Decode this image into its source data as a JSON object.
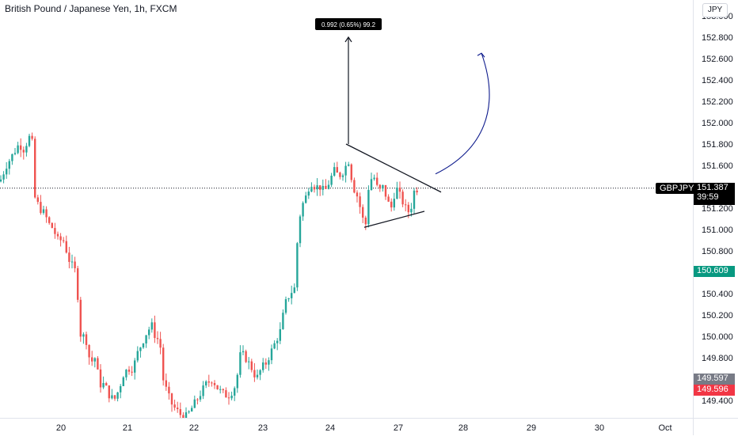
{
  "header": {
    "title": "British Pound / Japanese Yen, 1h, FXCM",
    "currency": "JPY"
  },
  "symbol_label": "GBPJPY",
  "price_tags": {
    "last": {
      "price": "151.387",
      "countdown": "39:59",
      "color": "#000000"
    },
    "level": {
      "price": "150.609",
      "color": "#089981"
    },
    "grey": {
      "price": "149.597",
      "color": "#787b86"
    },
    "red": {
      "price": "149.596",
      "color": "#f23645"
    }
  },
  "measure": {
    "text": "0.992 (0.65%) 99.2"
  },
  "colors": {
    "up": "#26a69a",
    "down": "#ef5350",
    "arrow": "#0d1a8c",
    "line": "#131722"
  },
  "chart_data": {
    "type": "candlestick",
    "title": "British Pound / Japanese Yen, 1h, FXCM",
    "x_tick_labels": [
      "20",
      "21",
      "22",
      "23",
      "24",
      "27",
      "28",
      "29",
      "30",
      "Oct"
    ],
    "y_tick_labels": [
      "149.400",
      "149.600",
      "149.800",
      "150.000",
      "150.200",
      "150.400",
      "150.600",
      "150.800",
      "151.000",
      "151.200",
      "151.400",
      "151.600",
      "151.800",
      "152.000",
      "152.200",
      "152.400",
      "152.600",
      "152.800",
      "153.000"
    ],
    "ylim": [
      149.3,
      153.1
    ],
    "approx_close_path": [
      [
        0,
        151.45
      ],
      [
        8,
        151.6
      ],
      [
        16,
        151.7
      ],
      [
        24,
        151.8
      ],
      [
        30,
        151.75
      ],
      [
        36,
        151.85
      ],
      [
        40,
        151.9
      ],
      [
        44,
        151.3
      ],
      [
        50,
        151.2
      ],
      [
        56,
        151.15
      ],
      [
        62,
        151.05
      ],
      [
        68,
        151.0
      ],
      [
        72,
        150.9
      ],
      [
        80,
        150.9
      ],
      [
        88,
        150.7
      ],
      [
        96,
        150.6
      ],
      [
        102,
        150.0
      ],
      [
        108,
        150.0
      ],
      [
        114,
        149.75
      ],
      [
        120,
        149.8
      ],
      [
        126,
        149.55
      ],
      [
        132,
        149.55
      ],
      [
        138,
        149.45
      ],
      [
        144,
        149.4
      ],
      [
        150,
        149.5
      ],
      [
        156,
        149.65
      ],
      [
        162,
        149.7
      ],
      [
        168,
        149.7
      ],
      [
        174,
        149.85
      ],
      [
        180,
        149.95
      ],
      [
        186,
        150.05
      ],
      [
        192,
        150.1
      ],
      [
        196,
        150.0
      ],
      [
        202,
        149.95
      ],
      [
        206,
        149.6
      ],
      [
        212,
        149.45
      ],
      [
        218,
        149.35
      ],
      [
        224,
        149.3
      ],
      [
        230,
        149.25
      ],
      [
        236,
        149.25
      ],
      [
        244,
        149.35
      ],
      [
        252,
        149.45
      ],
      [
        260,
        149.55
      ],
      [
        268,
        149.6
      ],
      [
        276,
        149.5
      ],
      [
        284,
        149.45
      ],
      [
        290,
        149.45
      ],
      [
        298,
        149.55
      ],
      [
        304,
        149.85
      ],
      [
        310,
        149.8
      ],
      [
        318,
        149.7
      ],
      [
        324,
        149.6
      ],
      [
        330,
        149.7
      ],
      [
        336,
        149.75
      ],
      [
        342,
        149.85
      ],
      [
        348,
        149.95
      ],
      [
        354,
        150.05
      ],
      [
        360,
        150.3
      ],
      [
        366,
        150.4
      ],
      [
        372,
        150.45
      ],
      [
        376,
        150.95
      ],
      [
        380,
        151.2
      ],
      [
        386,
        151.3
      ],
      [
        392,
        151.45
      ],
      [
        398,
        151.4
      ],
      [
        404,
        151.4
      ],
      [
        410,
        151.35
      ],
      [
        416,
        151.45
      ],
      [
        422,
        151.55
      ],
      [
        428,
        151.5
      ],
      [
        434,
        151.55
      ],
      [
        440,
        151.65
      ],
      [
        446,
        151.4
      ],
      [
        452,
        151.3
      ],
      [
        458,
        151.1
      ],
      [
        462,
        151.05
      ],
      [
        466,
        151.45
      ],
      [
        472,
        151.5
      ],
      [
        478,
        151.35
      ],
      [
        484,
        151.4
      ],
      [
        490,
        151.25
      ],
      [
        494,
        151.2
      ],
      [
        500,
        151.4
      ],
      [
        506,
        151.3
      ],
      [
        512,
        151.2
      ],
      [
        518,
        151.15
      ],
      [
        522,
        151.35
      ],
      [
        528,
        151.39
      ]
    ],
    "drawings": {
      "triangle_upper": [
        [
          437,
          151.8
        ],
        [
          557,
          151.35
        ]
      ],
      "triangle_lower": [
        [
          460,
          151.02
        ],
        [
          536,
          151.17
        ]
      ],
      "projection_arrow": {
        "start": [
          440,
          151.8
        ],
        "end": [
          440,
          152.8
        ],
        "label": "0.992 (0.65%) 99.2"
      },
      "curved_arrow": {
        "start": [
          550,
          151.52
        ],
        "end": [
          608,
          152.65
        ]
      }
    },
    "last_price": 151.387,
    "grid": false,
    "legend": "none"
  }
}
